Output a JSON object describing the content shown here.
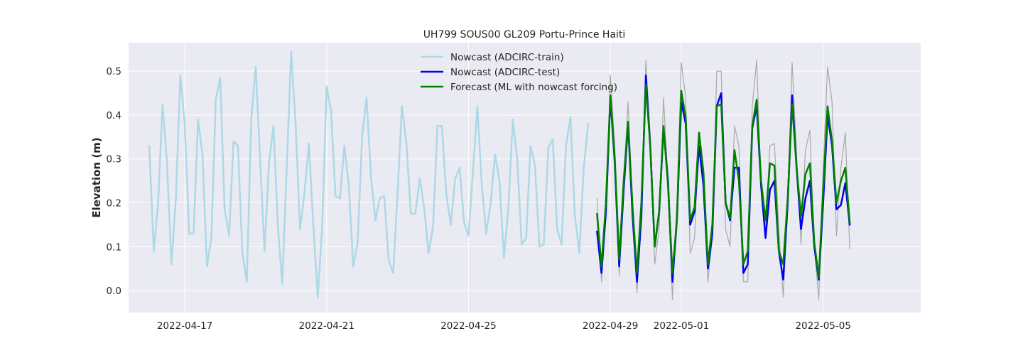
{
  "chart_data": {
    "type": "line",
    "title": "UH799 SOUS00 GL209 Portu-Prince Haiti",
    "ylabel": "Elevation (m)",
    "xlabel": "",
    "x_type": "date",
    "xlim": [
      "2022-04-15T10:00",
      "2022-05-07T18:00"
    ],
    "ylim": [
      -0.05,
      0.565
    ],
    "x_ticks": [
      "2022-04-17",
      "2022-04-21",
      "2022-04-25",
      "2022-04-29",
      "2022-05-01",
      "2022-05-05"
    ],
    "y_ticks": [
      0.0,
      0.1,
      0.2,
      0.3,
      0.4,
      0.5
    ],
    "grid": true,
    "legend_position": "top-center",
    "background": "#eaeaf2",
    "series": [
      {
        "name": "Nowcast (ADCIRC-train)",
        "color": "#add8e6",
        "width": 2.5,
        "start": "2022-04-16T00:00",
        "step_hours": 3,
        "values": [
          0.33,
          0.09,
          0.2,
          0.425,
          0.29,
          0.06,
          0.21,
          0.49,
          0.38,
          0.13,
          0.13,
          0.39,
          0.31,
          0.055,
          0.12,
          0.435,
          0.485,
          0.185,
          0.125,
          0.34,
          0.33,
          0.085,
          0.02,
          0.39,
          0.51,
          0.3,
          0.09,
          0.29,
          0.375,
          0.15,
          0.015,
          0.28,
          0.545,
          0.38,
          0.14,
          0.22,
          0.335,
          0.15,
          -0.015,
          0.145,
          0.465,
          0.41,
          0.215,
          0.21,
          0.33,
          0.24,
          0.055,
          0.11,
          0.35,
          0.44,
          0.26,
          0.16,
          0.21,
          0.215,
          0.07,
          0.04,
          0.22,
          0.42,
          0.335,
          0.175,
          0.175,
          0.255,
          0.19,
          0.085,
          0.145,
          0.375,
          0.375,
          0.22,
          0.15,
          0.255,
          0.28,
          0.155,
          0.125,
          0.27,
          0.42,
          0.24,
          0.13,
          0.2,
          0.31,
          0.25,
          0.075,
          0.19,
          0.39,
          0.3,
          0.105,
          0.12,
          0.33,
          0.285,
          0.1,
          0.105,
          0.325,
          0.345,
          0.14,
          0.105,
          0.33,
          0.395,
          0.17,
          0.085,
          0.28,
          0.38
        ]
      },
      {
        "name": "",
        "color": "#a9a9a9",
        "width": 1.2,
        "start": "2022-04-28T15:00",
        "step_hours": 3,
        "values": [
          0.21,
          0.02,
          0.18,
          0.49,
          0.33,
          0.035,
          0.25,
          0.43,
          0.18,
          -0.005,
          0.16,
          0.525,
          0.35,
          0.06,
          0.14,
          0.44,
          0.25,
          -0.02,
          0.2,
          0.52,
          0.44,
          0.085,
          0.12,
          0.36,
          0.27,
          0.02,
          0.12,
          0.5,
          0.5,
          0.14,
          0.1,
          0.375,
          0.33,
          0.02,
          0.02,
          0.42,
          0.525,
          0.24,
          0.15,
          0.33,
          0.335,
          0.14,
          -0.015,
          0.2,
          0.52,
          0.31,
          0.105,
          0.32,
          0.365,
          0.1,
          -0.02,
          0.28,
          0.51,
          0.43,
          0.125,
          0.28,
          0.36,
          0.095
        ]
      },
      {
        "name": "Nowcast (ADCIRC-test)",
        "color": "#0000ee",
        "width": 2.5,
        "start": "2022-04-28T15:00",
        "step_hours": 3,
        "values": [
          0.135,
          0.04,
          0.18,
          0.44,
          0.29,
          0.055,
          0.23,
          0.38,
          0.17,
          0.02,
          0.17,
          0.49,
          0.33,
          0.1,
          0.18,
          0.37,
          0.25,
          0.02,
          0.16,
          0.43,
          0.38,
          0.15,
          0.18,
          0.33,
          0.24,
          0.05,
          0.13,
          0.42,
          0.45,
          0.2,
          0.16,
          0.28,
          0.28,
          0.04,
          0.06,
          0.37,
          0.42,
          0.24,
          0.12,
          0.23,
          0.25,
          0.09,
          0.025,
          0.2,
          0.445,
          0.28,
          0.14,
          0.21,
          0.25,
          0.1,
          0.025,
          0.2,
          0.4,
          0.33,
          0.185,
          0.195,
          0.245,
          0.15
        ]
      },
      {
        "name": "Forecast (ML with nowcast forcing)",
        "color": "#008000",
        "width": 2.5,
        "start": "2022-04-28T15:00",
        "step_hours": 3,
        "values": [
          0.175,
          0.055,
          0.2,
          0.445,
          0.3,
          0.07,
          0.25,
          0.385,
          0.19,
          0.04,
          0.2,
          0.47,
          0.33,
          0.1,
          0.18,
          0.375,
          0.24,
          0.04,
          0.16,
          0.455,
          0.395,
          0.16,
          0.19,
          0.36,
          0.27,
          0.06,
          0.15,
          0.42,
          0.425,
          0.2,
          0.165,
          0.32,
          0.25,
          0.06,
          0.09,
          0.375,
          0.435,
          0.25,
          0.16,
          0.29,
          0.285,
          0.09,
          0.06,
          0.21,
          0.425,
          0.28,
          0.17,
          0.265,
          0.29,
          0.11,
          0.03,
          0.23,
          0.42,
          0.34,
          0.2,
          0.25,
          0.28,
          0.155
        ]
      }
    ]
  }
}
